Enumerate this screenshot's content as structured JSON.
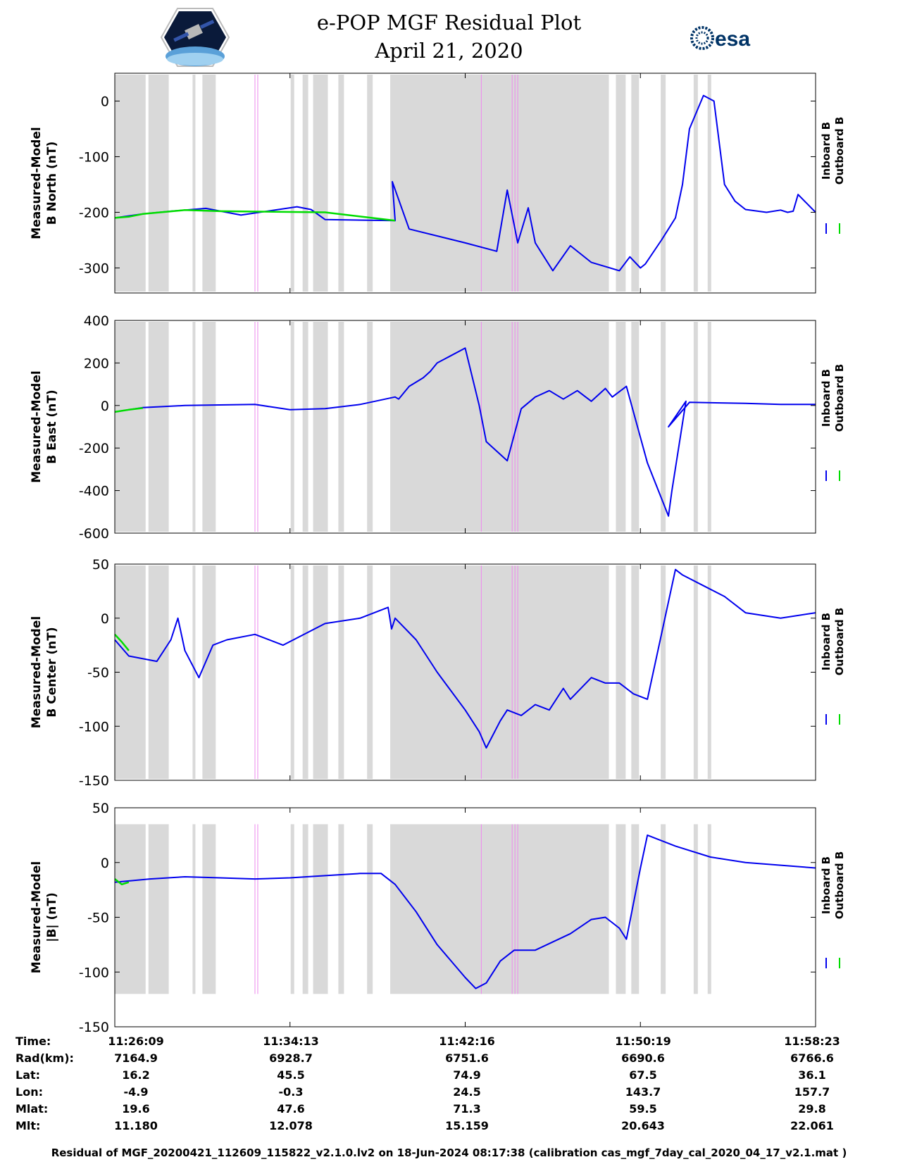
{
  "title": "e-POP MGF Residual Plot",
  "date": "April 21, 2020",
  "colors": {
    "inboard": "#0000ee",
    "outboard": "#00dd00",
    "shade": "#d9d9d9",
    "magenta": "#ee88ee"
  },
  "legend": {
    "inboard": "Inboard B",
    "outboard": "Outboard B"
  },
  "chart_data": [
    {
      "type": "line",
      "ylabel_line1": "Measured-Model",
      "ylabel_line2": "B North (nT)",
      "ylim": [
        -345,
        50
      ],
      "yticks": [
        0,
        -100,
        -200,
        -300
      ],
      "series": [
        {
          "name": "Inboard B",
          "x": [
            0,
            0.04,
            0.08,
            0.13,
            0.18,
            0.26,
            0.28,
            0.3,
            0.4,
            0.396,
            0.42,
            0.5,
            0.545,
            0.56,
            0.575,
            0.59,
            0.6,
            0.625,
            0.65,
            0.68,
            0.72,
            0.735,
            0.75,
            0.757,
            0.78,
            0.79,
            0.8,
            0.81,
            0.82,
            0.84,
            0.855,
            0.87,
            0.885,
            0.9,
            0.93,
            0.95,
            0.96,
            0.968,
            0.975,
            1.0
          ],
          "y": [
            -210,
            -203,
            -198,
            -193,
            -205,
            -190,
            -195,
            -213,
            -215,
            -145,
            -230,
            -255,
            -270,
            -160,
            -255,
            -192,
            -255,
            -305,
            -260,
            -290,
            -305,
            -280,
            -300,
            -293,
            -250,
            -230,
            -210,
            -150,
            -50,
            10,
            0,
            -150,
            -180,
            -195,
            -200,
            -196,
            -200,
            -198,
            -168,
            -200
          ]
        },
        {
          "name": "Outboard B",
          "x": [
            0,
            0.02,
            0.04,
            0.1,
            0.15,
            0.3,
            0.4
          ],
          "y": [
            -210,
            -208,
            -203,
            -196,
            -198,
            -200,
            -215
          ]
        }
      ],
      "shaded_intervals": [
        [
          0.0,
          0.044
        ],
        [
          0.048,
          0.077
        ],
        [
          0.111,
          0.115
        ],
        [
          0.125,
          0.144
        ],
        [
          0.251,
          0.256
        ],
        [
          0.268,
          0.276
        ],
        [
          0.283,
          0.304
        ],
        [
          0.319,
          0.327
        ],
        [
          0.36,
          0.368
        ],
        [
          0.393,
          0.705
        ],
        [
          0.715,
          0.729
        ],
        [
          0.737,
          0.748
        ],
        [
          0.779,
          0.786
        ],
        [
          0.826,
          0.832
        ],
        [
          0.846,
          0.851
        ]
      ],
      "magenta_lines": [
        0.2,
        0.204,
        0.523,
        0.567,
        0.571,
        0.575
      ]
    },
    {
      "type": "line",
      "ylabel_line1": "Measured-Model",
      "ylabel_line2": "B East (nT)",
      "ylim": [
        -600,
        400
      ],
      "yticks": [
        400,
        200,
        0,
        -200,
        -400,
        -600
      ],
      "series": [
        {
          "name": "Inboard B",
          "x": [
            0,
            0.04,
            0.1,
            0.2,
            0.25,
            0.3,
            0.35,
            0.4,
            0.405,
            0.42,
            0.44,
            0.45,
            0.46,
            0.5,
            0.52,
            0.53,
            0.56,
            0.58,
            0.6,
            0.62,
            0.64,
            0.66,
            0.68,
            0.7,
            0.71,
            0.73,
            0.76,
            0.79,
            0.795,
            0.815,
            0.79,
            0.82,
            0.9,
            0.95,
            1.0
          ],
          "y": [
            -30,
            -10,
            0,
            5,
            -20,
            -15,
            5,
            40,
            30,
            90,
            130,
            160,
            200,
            270,
            0,
            -170,
            -260,
            -15,
            40,
            70,
            30,
            70,
            20,
            80,
            40,
            90,
            -270,
            -520,
            -400,
            20,
            -100,
            15,
            10,
            5,
            5
          ]
        },
        {
          "name": "Outboard B",
          "x": [
            0,
            0.02,
            0.04
          ],
          "y": [
            -30,
            -20,
            -12
          ]
        }
      ],
      "shaded_intervals": [
        [
          0.0,
          0.044
        ],
        [
          0.048,
          0.077
        ],
        [
          0.111,
          0.115
        ],
        [
          0.125,
          0.144
        ],
        [
          0.251,
          0.256
        ],
        [
          0.268,
          0.276
        ],
        [
          0.283,
          0.304
        ],
        [
          0.319,
          0.327
        ],
        [
          0.36,
          0.368
        ],
        [
          0.393,
          0.705
        ],
        [
          0.715,
          0.729
        ],
        [
          0.737,
          0.748
        ],
        [
          0.779,
          0.786
        ],
        [
          0.826,
          0.832
        ],
        [
          0.846,
          0.851
        ]
      ],
      "magenta_lines": [
        0.2,
        0.204,
        0.523,
        0.567,
        0.571,
        0.575
      ]
    },
    {
      "type": "line",
      "ylabel_line1": "Measured-Model",
      "ylabel_line2": "B Center (nT)",
      "ylim": [
        -150,
        50
      ],
      "yticks": [
        50,
        0,
        -50,
        -100,
        -150
      ],
      "series": [
        {
          "name": "Inboard B",
          "x": [
            0,
            0.02,
            0.06,
            0.08,
            0.09,
            0.1,
            0.12,
            0.13,
            0.14,
            0.16,
            0.2,
            0.24,
            0.3,
            0.35,
            0.39,
            0.395,
            0.4,
            0.43,
            0.46,
            0.5,
            0.52,
            0.53,
            0.55,
            0.56,
            0.58,
            0.6,
            0.62,
            0.64,
            0.65,
            0.68,
            0.7,
            0.72,
            0.74,
            0.76,
            0.8,
            0.81,
            0.84,
            0.87,
            0.9,
            0.95,
            1.0
          ],
          "y": [
            -20,
            -35,
            -40,
            -20,
            0,
            -30,
            -55,
            -40,
            -25,
            -20,
            -15,
            -25,
            -5,
            0,
            10,
            -10,
            0,
            -20,
            -50,
            -85,
            -105,
            -120,
            -95,
            -85,
            -90,
            -80,
            -85,
            -65,
            -75,
            -55,
            -60,
            -60,
            -70,
            -75,
            45,
            40,
            30,
            20,
            5,
            0,
            5
          ]
        },
        {
          "name": "Outboard B",
          "x": [
            0,
            0.01,
            0.02
          ],
          "y": [
            -15,
            -22,
            -30
          ]
        }
      ],
      "shaded_intervals": [
        [
          0.0,
          0.044
        ],
        [
          0.048,
          0.077
        ],
        [
          0.111,
          0.115
        ],
        [
          0.125,
          0.144
        ],
        [
          0.251,
          0.256
        ],
        [
          0.268,
          0.276
        ],
        [
          0.283,
          0.304
        ],
        [
          0.319,
          0.327
        ],
        [
          0.36,
          0.368
        ],
        [
          0.393,
          0.705
        ],
        [
          0.715,
          0.729
        ],
        [
          0.737,
          0.748
        ],
        [
          0.779,
          0.786
        ],
        [
          0.826,
          0.832
        ],
        [
          0.846,
          0.851
        ]
      ],
      "magenta_lines": [
        0.2,
        0.204,
        0.523,
        0.567,
        0.571,
        0.575
      ]
    },
    {
      "type": "line",
      "ylabel_line1": "Measured-Model",
      "ylabel_line2": "|B| (nT)",
      "ylim": [
        -150,
        50
      ],
      "yticks": [
        50,
        0,
        -50,
        -100,
        -150
      ],
      "series": [
        {
          "name": "Inboard B",
          "x": [
            0,
            0.05,
            0.1,
            0.15,
            0.2,
            0.25,
            0.3,
            0.35,
            0.38,
            0.4,
            0.43,
            0.46,
            0.5,
            0.515,
            0.53,
            0.55,
            0.57,
            0.6,
            0.65,
            0.68,
            0.7,
            0.72,
            0.73,
            0.75,
            0.76,
            0.8,
            0.85,
            0.9,
            1.0
          ],
          "y": [
            -18,
            -15,
            -13,
            -14,
            -15,
            -14,
            -12,
            -10,
            -10,
            -20,
            -45,
            -75,
            -105,
            -115,
            -110,
            -90,
            -80,
            -80,
            -65,
            -52,
            -50,
            -60,
            -70,
            -5,
            25,
            15,
            5,
            0,
            -5
          ]
        },
        {
          "name": "Outboard B",
          "x": [
            0,
            0.01,
            0.02
          ],
          "y": [
            -15,
            -20,
            -18
          ]
        }
      ],
      "shaded_intervals": [
        [
          0.0,
          0.044
        ],
        [
          0.048,
          0.077
        ],
        [
          0.111,
          0.115
        ],
        [
          0.125,
          0.144
        ],
        [
          0.251,
          0.256
        ],
        [
          0.268,
          0.276
        ],
        [
          0.283,
          0.304
        ],
        [
          0.319,
          0.327
        ],
        [
          0.36,
          0.368
        ],
        [
          0.393,
          0.705
        ],
        [
          0.715,
          0.729
        ],
        [
          0.737,
          0.748
        ],
        [
          0.779,
          0.786
        ],
        [
          0.826,
          0.832
        ],
        [
          0.846,
          0.851
        ]
      ],
      "shade_ylim": [
        -120,
        35
      ],
      "magenta_lines": [
        0.2,
        0.204,
        0.523,
        0.567,
        0.571,
        0.575
      ]
    }
  ],
  "table": {
    "labels": [
      "Time:",
      "Rad(km):",
      "Lat:",
      "Lon:",
      "Mlat:",
      "Mlt:"
    ],
    "columns": [
      [
        "11:26:09",
        "7164.9",
        "16.2",
        "-4.9",
        "19.6",
        "11.180"
      ],
      [
        "11:34:13",
        "6928.7",
        "45.5",
        "-0.3",
        "47.6",
        "12.078"
      ],
      [
        "11:42:16",
        "6751.6",
        "74.9",
        "24.5",
        "71.3",
        "15.159"
      ],
      [
        "11:50:19",
        "6690.6",
        "67.5",
        "143.7",
        "59.5",
        "20.643"
      ],
      [
        "11:58:23",
        "6766.6",
        "36.1",
        "157.7",
        "29.8",
        "22.061"
      ]
    ]
  },
  "footer": "Residual of MGF_20200421_112609_115822_v2.1.0.lv2 on 18-Jun-2024 08:17:38 (calibration cas_mgf_7day_cal_2020_04_17_v2.1.mat )"
}
